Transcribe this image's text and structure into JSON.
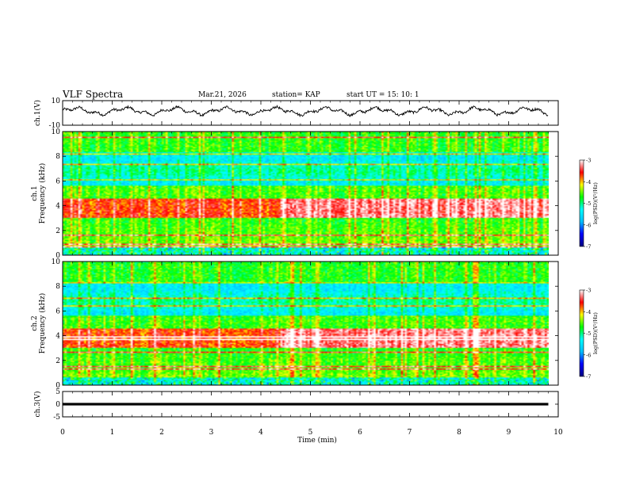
{
  "header": {
    "title": "VLF Spectra",
    "date": "Mar.21, 2026",
    "station": "station= KAP",
    "start": "start  UT  =   15: 10: 1"
  },
  "chart_data": [
    {
      "type": "line",
      "name": "ch1-waveform",
      "ylabel": "ch.1(V)",
      "ylim": [
        -10,
        10
      ],
      "y_ticks": [
        "10",
        "-10"
      ],
      "xlim": [
        0,
        10
      ],
      "x_end_data": 9.8,
      "trace_amplitude": 4.5,
      "trace_mean": 1.5
    },
    {
      "type": "heatmap",
      "name": "ch1-spectrogram",
      "ylabel": "ch.1\nFrequency (kHz)",
      "ylabel_lines": [
        "ch.1",
        "Frequency  (kHz)"
      ],
      "ylim": [
        0,
        10
      ],
      "y_ticks": [
        "10",
        "8",
        "6",
        "4",
        "2",
        "0"
      ],
      "xlim": [
        0,
        10
      ],
      "x_end_data": 9.8,
      "colorbar": {
        "label": "log(PSD)(V²/Hz)",
        "range": [
          -7,
          -3
        ],
        "ticks": [
          "-3",
          "-4",
          "-5",
          "-6",
          "-7"
        ]
      },
      "features": {
        "strong_band_khz": [
          3.0,
          4.6
        ],
        "enhanced_interval_min": [
          4.4,
          9.8
        ],
        "weak_band_khz": [
          5.6,
          8.3
        ]
      }
    },
    {
      "type": "heatmap",
      "name": "ch2-spectrogram",
      "ylabel": "ch.2\nFrequency (kHz)",
      "ylabel_lines": [
        "ch.2",
        "Frequency  (kHz)"
      ],
      "ylim": [
        0,
        10
      ],
      "y_ticks": [
        "10",
        "8",
        "6",
        "4",
        "2",
        "0"
      ],
      "xlim": [
        0,
        10
      ],
      "x_end_data": 9.8,
      "colorbar": {
        "label": "log(PSD)(V²/Hz)",
        "range": [
          -7,
          -3
        ],
        "ticks": [
          "-3",
          "-4",
          "-5",
          "-6",
          "-7"
        ]
      },
      "features": {
        "strong_band_khz": [
          3.0,
          4.6
        ],
        "enhanced_interval_min": [
          4.4,
          9.8
        ],
        "weak_band_khz": [
          5.6,
          8.3
        ]
      }
    },
    {
      "type": "line",
      "name": "ch3-waveform",
      "ylabel": "ch.3(V)",
      "ylim": [
        -5,
        5
      ],
      "y_ticks": [
        "5",
        "0",
        "-5"
      ],
      "xlim": [
        0,
        10
      ],
      "x_end_data": 9.8,
      "level": 0,
      "thickness_v": 1.0
    }
  ],
  "x_axis": {
    "label": "Time  (min)",
    "ticks": [
      "0",
      "1",
      "2",
      "3",
      "4",
      "5",
      "6",
      "7",
      "8",
      "9",
      "10"
    ]
  },
  "colors": {
    "palette": [
      "#000080",
      "#0000ff",
      "#00bfff",
      "#00ffff",
      "#00ff00",
      "#ffff00",
      "#ff0000",
      "#ffffff"
    ]
  }
}
